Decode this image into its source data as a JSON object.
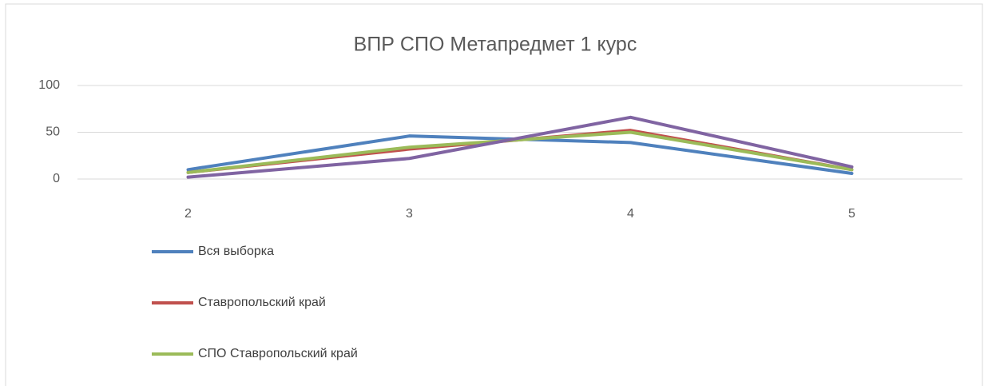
{
  "chart_data": {
    "type": "line",
    "title": "ВПР СПО Метапредмет 1 курс",
    "categories": [
      "2",
      "3",
      "4",
      "5"
    ],
    "series": [
      {
        "name": "Вся выборка",
        "color": "#4f81bd",
        "values": [
          10,
          46,
          39,
          6
        ]
      },
      {
        "name": "Ставропольский край",
        "color": "#c0504d",
        "values": [
          7,
          32,
          52,
          10
        ]
      },
      {
        "name": "СПО Ставропольский край",
        "color": "#9bbb59",
        "values": [
          7,
          34,
          50,
          10
        ]
      },
      {
        "color": "#8064a2",
        "values": [
          2,
          22,
          66,
          13
        ]
      }
    ],
    "ylim": [
      0,
      100
    ],
    "yticks": [
      0,
      50,
      100
    ],
    "grid": true
  }
}
